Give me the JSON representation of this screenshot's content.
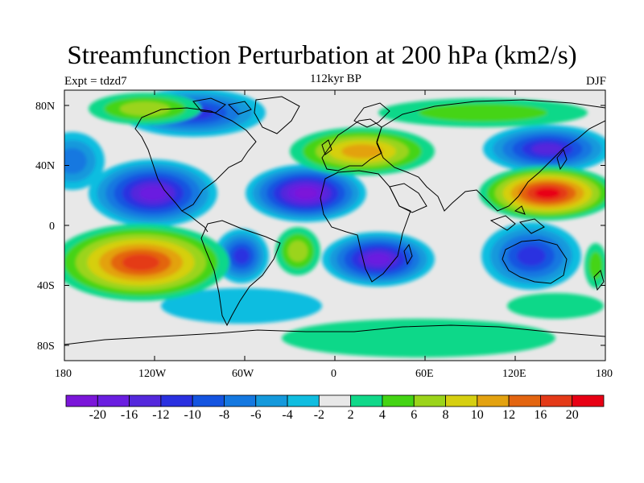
{
  "title": "Streamfunction Perturbation at 200 hPa (km2/s)",
  "left_label": "Expt = tdzd7",
  "center_label": "112kyr BP",
  "right_label": "DJF",
  "y_ticks": [
    "80N",
    "40N",
    "0",
    "40S",
    "80S"
  ],
  "x_ticks": [
    "180",
    "120W",
    "60W",
    "0",
    "60E",
    "120E",
    "180"
  ],
  "colorbar": {
    "labels": [
      "-20",
      "-16",
      "-12",
      "-10",
      "-8",
      "-6",
      "-4",
      "-2",
      "2",
      "4",
      "6",
      "8",
      "10",
      "12",
      "16",
      "20"
    ],
    "colors": [
      "#7b16d9",
      "#6a1ee0",
      "#5428dc",
      "#2a30e0",
      "#1454e0",
      "#1478e0",
      "#1499dc",
      "#10bde0",
      "#e8e8e8",
      "#10d889",
      "#44d414",
      "#9bd41a",
      "#d6cf10",
      "#e3a210",
      "#e36510",
      "#e43a18",
      "#e80014"
    ]
  },
  "map": {
    "projection": "cylindrical-equidistant",
    "lon_range": [
      -180,
      180
    ],
    "lat_range": [
      -90,
      90
    ],
    "variable": "streamfunction perturbation",
    "level": "200 hPa",
    "units": "km2/s"
  }
}
